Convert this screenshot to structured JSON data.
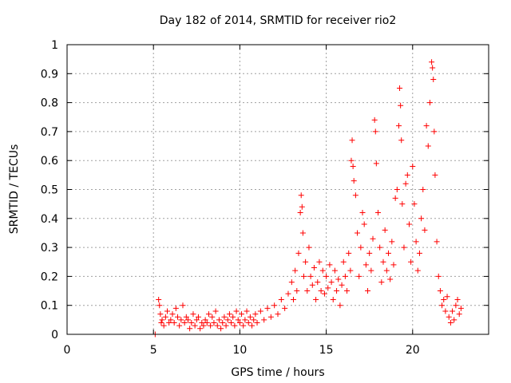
{
  "chart_data": {
    "type": "scatter",
    "title": "Day 182 of 2014, SRMTID for receiver rio2",
    "xlabel": "GPS time / hours",
    "ylabel": "SRMTID / TECUs",
    "xlim": [
      0,
      24.4
    ],
    "ylim": [
      0,
      1
    ],
    "xticks": [
      0,
      5,
      10,
      15,
      20
    ],
    "xtick_labels": [
      "0",
      "5",
      "10",
      "15",
      "20"
    ],
    "yticks": [
      0,
      0.1,
      0.2,
      0.3,
      0.4,
      0.5,
      0.6,
      0.7,
      0.8,
      0.9,
      1
    ],
    "ytick_labels": [
      "0",
      "0.1",
      "0.2",
      "0.3",
      "0.4",
      "0.5",
      "0.6",
      "0.7",
      "0.8",
      "0.9",
      "1"
    ],
    "grid": true,
    "marker": "+",
    "color": "#ff0000",
    "series": [
      {
        "name": "SRMTID",
        "points": [
          [
            5.1,
            0.0
          ],
          [
            5.3,
            0.12
          ],
          [
            5.35,
            0.1
          ],
          [
            5.4,
            0.07
          ],
          [
            5.45,
            0.04
          ],
          [
            5.5,
            0.05
          ],
          [
            5.6,
            0.03
          ],
          [
            5.7,
            0.06
          ],
          [
            5.8,
            0.08
          ],
          [
            5.9,
            0.04
          ],
          [
            6.0,
            0.05
          ],
          [
            6.1,
            0.07
          ],
          [
            6.2,
            0.04
          ],
          [
            6.3,
            0.09
          ],
          [
            6.4,
            0.06
          ],
          [
            6.5,
            0.03
          ],
          [
            6.6,
            0.05
          ],
          [
            6.7,
            0.1
          ],
          [
            6.8,
            0.04
          ],
          [
            6.9,
            0.06
          ],
          [
            7.0,
            0.05
          ],
          [
            7.1,
            0.02
          ],
          [
            7.2,
            0.04
          ],
          [
            7.3,
            0.07
          ],
          [
            7.4,
            0.03
          ],
          [
            7.5,
            0.05
          ],
          [
            7.6,
            0.06
          ],
          [
            7.7,
            0.02
          ],
          [
            7.8,
            0.04
          ],
          [
            7.9,
            0.03
          ],
          [
            8.0,
            0.05
          ],
          [
            8.1,
            0.04
          ],
          [
            8.2,
            0.07
          ],
          [
            8.3,
            0.03
          ],
          [
            8.4,
            0.06
          ],
          [
            8.5,
            0.04
          ],
          [
            8.6,
            0.08
          ],
          [
            8.7,
            0.03
          ],
          [
            8.8,
            0.05
          ],
          [
            8.9,
            0.02
          ],
          [
            9.0,
            0.04
          ],
          [
            9.1,
            0.06
          ],
          [
            9.2,
            0.03
          ],
          [
            9.3,
            0.05
          ],
          [
            9.4,
            0.07
          ],
          [
            9.5,
            0.04
          ],
          [
            9.6,
            0.06
          ],
          [
            9.7,
            0.03
          ],
          [
            9.8,
            0.08
          ],
          [
            9.9,
            0.05
          ],
          [
            10.0,
            0.04
          ],
          [
            10.1,
            0.07
          ],
          [
            10.2,
            0.03
          ],
          [
            10.3,
            0.05
          ],
          [
            10.4,
            0.08
          ],
          [
            10.5,
            0.04
          ],
          [
            10.6,
            0.06
          ],
          [
            10.7,
            0.03
          ],
          [
            10.8,
            0.05
          ],
          [
            10.9,
            0.07
          ],
          [
            11.0,
            0.04
          ],
          [
            11.2,
            0.08
          ],
          [
            11.4,
            0.05
          ],
          [
            11.6,
            0.09
          ],
          [
            11.8,
            0.06
          ],
          [
            12.0,
            0.1
          ],
          [
            12.2,
            0.07
          ],
          [
            12.4,
            0.12
          ],
          [
            12.6,
            0.09
          ],
          [
            12.8,
            0.14
          ],
          [
            13.0,
            0.18
          ],
          [
            13.1,
            0.12
          ],
          [
            13.2,
            0.22
          ],
          [
            13.3,
            0.15
          ],
          [
            13.4,
            0.28
          ],
          [
            13.5,
            0.42
          ],
          [
            13.55,
            0.48
          ],
          [
            13.6,
            0.44
          ],
          [
            13.65,
            0.35
          ],
          [
            13.7,
            0.2
          ],
          [
            13.8,
            0.25
          ],
          [
            13.9,
            0.15
          ],
          [
            14.0,
            0.3
          ],
          [
            14.1,
            0.2
          ],
          [
            14.2,
            0.17
          ],
          [
            14.3,
            0.23
          ],
          [
            14.4,
            0.12
          ],
          [
            14.5,
            0.18
          ],
          [
            14.6,
            0.25
          ],
          [
            14.7,
            0.15
          ],
          [
            14.8,
            0.22
          ],
          [
            14.9,
            0.14
          ],
          [
            15.0,
            0.2
          ],
          [
            15.1,
            0.16
          ],
          [
            15.2,
            0.24
          ],
          [
            15.3,
            0.18
          ],
          [
            15.4,
            0.12
          ],
          [
            15.5,
            0.22
          ],
          [
            15.6,
            0.15
          ],
          [
            15.7,
            0.19
          ],
          [
            15.8,
            0.1
          ],
          [
            15.9,
            0.17
          ],
          [
            16.0,
            0.25
          ],
          [
            16.1,
            0.2
          ],
          [
            16.2,
            0.15
          ],
          [
            16.3,
            0.28
          ],
          [
            16.4,
            0.22
          ],
          [
            16.45,
            0.6
          ],
          [
            16.5,
            0.67
          ],
          [
            16.55,
            0.58
          ],
          [
            16.6,
            0.53
          ],
          [
            16.7,
            0.48
          ],
          [
            16.8,
            0.35
          ],
          [
            16.9,
            0.2
          ],
          [
            17.0,
            0.3
          ],
          [
            17.1,
            0.42
          ],
          [
            17.2,
            0.38
          ],
          [
            17.3,
            0.24
          ],
          [
            17.4,
            0.15
          ],
          [
            17.5,
            0.28
          ],
          [
            17.6,
            0.22
          ],
          [
            17.7,
            0.33
          ],
          [
            17.8,
            0.74
          ],
          [
            17.85,
            0.7
          ],
          [
            17.9,
            0.59
          ],
          [
            18.0,
            0.42
          ],
          [
            18.1,
            0.3
          ],
          [
            18.2,
            0.18
          ],
          [
            18.3,
            0.25
          ],
          [
            18.4,
            0.36
          ],
          [
            18.5,
            0.22
          ],
          [
            18.6,
            0.28
          ],
          [
            18.7,
            0.19
          ],
          [
            18.8,
            0.32
          ],
          [
            18.9,
            0.24
          ],
          [
            19.0,
            0.47
          ],
          [
            19.1,
            0.5
          ],
          [
            19.2,
            0.72
          ],
          [
            19.25,
            0.85
          ],
          [
            19.3,
            0.79
          ],
          [
            19.35,
            0.67
          ],
          [
            19.4,
            0.45
          ],
          [
            19.5,
            0.3
          ],
          [
            19.6,
            0.52
          ],
          [
            19.7,
            0.55
          ],
          [
            19.8,
            0.38
          ],
          [
            19.9,
            0.25
          ],
          [
            20.0,
            0.58
          ],
          [
            20.1,
            0.45
          ],
          [
            20.2,
            0.32
          ],
          [
            20.3,
            0.22
          ],
          [
            20.4,
            0.28
          ],
          [
            20.5,
            0.4
          ],
          [
            20.6,
            0.5
          ],
          [
            20.7,
            0.36
          ],
          [
            20.8,
            0.72
          ],
          [
            20.9,
            0.65
          ],
          [
            21.0,
            0.8
          ],
          [
            21.1,
            0.94
          ],
          [
            21.15,
            0.92
          ],
          [
            21.2,
            0.88
          ],
          [
            21.25,
            0.7
          ],
          [
            21.3,
            0.55
          ],
          [
            21.4,
            0.32
          ],
          [
            21.5,
            0.2
          ],
          [
            21.6,
            0.15
          ],
          [
            21.7,
            0.1
          ],
          [
            21.8,
            0.12
          ],
          [
            21.9,
            0.08
          ],
          [
            22.0,
            0.13
          ],
          [
            22.1,
            0.06
          ],
          [
            22.2,
            0.04
          ],
          [
            22.3,
            0.08
          ],
          [
            22.4,
            0.05
          ],
          [
            22.5,
            0.1
          ],
          [
            22.6,
            0.12
          ],
          [
            22.7,
            0.07
          ],
          [
            22.8,
            0.09
          ]
        ]
      }
    ]
  }
}
